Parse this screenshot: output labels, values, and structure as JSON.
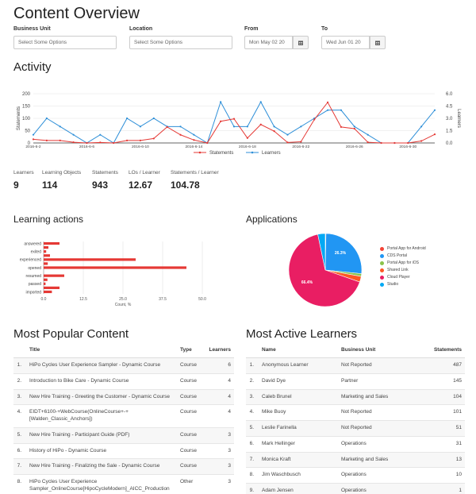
{
  "page": {
    "title": "Content Overview"
  },
  "filters": {
    "business_unit": {
      "label": "Business Unit",
      "placeholder": "Select Some Options"
    },
    "location": {
      "label": "Location",
      "placeholder": "Select Some Options"
    },
    "from": {
      "label": "From",
      "value": "Mon May 02 20"
    },
    "to": {
      "label": "To",
      "value": "Wed Jun 01 20"
    }
  },
  "activity": {
    "title": "Activity",
    "y_left_label": "Statements",
    "y_right_label": "Learners",
    "y_left_ticks": [
      "0",
      "50",
      "100",
      "150",
      "200"
    ],
    "y_right_ticks": [
      "0.0",
      "1.5",
      "3.0",
      "4.5",
      "6.0"
    ],
    "x_labels": [
      "2016-6-2",
      "2016-6-6",
      "2016-6-10",
      "2016-6-14",
      "2016-6-18",
      "2016-6-22",
      "2016-6-26",
      "2016-6-30"
    ],
    "legend": {
      "statements": "Statements",
      "learners": "Learners"
    },
    "colors": {
      "statements": "#e53935",
      "learners": "#2e8fd8"
    }
  },
  "stats": [
    {
      "label": "Learners",
      "value": "9"
    },
    {
      "label": "Learning Objects",
      "value": "114"
    },
    {
      "label": "Statements",
      "value": "943"
    },
    {
      "label": "LOs / Learner",
      "value": "12.67"
    },
    {
      "label": "Statements / Learner",
      "value": "104.78"
    }
  ],
  "learning_actions": {
    "title": "Learning actions",
    "xlabel": "Count, %",
    "x_ticks": [
      "0.0",
      "12.5",
      "25.0",
      "37.5",
      "50.0"
    ],
    "y_labels": [
      "answered",
      "exited",
      "experienced",
      "opened",
      "resumed",
      "passed",
      "imported"
    ]
  },
  "applications": {
    "title": "Applications",
    "legend": [
      {
        "label": "Portal App for Android",
        "color": "#f44336"
      },
      {
        "label": "CDS Portal",
        "color": "#2196f3"
      },
      {
        "label": "Portal App for iOS",
        "color": "#8bc34a"
      },
      {
        "label": "Shared Link",
        "color": "#ff5722"
      },
      {
        "label": "Cloud Player",
        "color": "#e91e63"
      },
      {
        "label": "Studio",
        "color": "#03a9f4"
      }
    ],
    "slice_labels": {
      "cds": "26.3%",
      "cloud": "66.4%"
    }
  },
  "popular_content": {
    "title": "Most Popular Content",
    "columns": [
      "Title",
      "Type",
      "Learners"
    ],
    "rows": [
      {
        "idx": "1.",
        "title": "HiPo Cycles User Experience Sampler - Dynamic Course",
        "type": "Course",
        "learners": "6"
      },
      {
        "idx": "2.",
        "title": "Introduction to Bike Care - Dynamic Course",
        "type": "Course",
        "learners": "4"
      },
      {
        "idx": "3.",
        "title": "New Hire Training - Greeting the Customer - Dynamic Course",
        "type": "Course",
        "learners": "4"
      },
      {
        "idx": "4.",
        "title": "EIDT+6100-+WebCourse(OnlineCourse+-+[Walden_Classic_Anchors])",
        "type": "Course",
        "learners": "4"
      },
      {
        "idx": "5.",
        "title": "New Hire Training - Participant Guide (PDF)",
        "type": "Course",
        "learners": "3"
      },
      {
        "idx": "6.",
        "title": "History of HiPo - Dynamic Course",
        "type": "Course",
        "learners": "3"
      },
      {
        "idx": "7.",
        "title": "New Hire Training - Finalizing the Sale - Dynamic Course",
        "type": "Course",
        "learners": "3"
      },
      {
        "idx": "8.",
        "title": "HiPo Cycles User Experience Sampler_OnlineCourse[HipoCycleModern]_AICC_Production",
        "type": "Other",
        "learners": "3"
      }
    ]
  },
  "active_learners": {
    "title": "Most Active Learners",
    "columns": [
      "Name",
      "Business Unit",
      "Statements"
    ],
    "rows": [
      {
        "idx": "1.",
        "name": "Anonymous Learner",
        "unit": "Not Reported",
        "statements": "487"
      },
      {
        "idx": "2.",
        "name": "David Dye",
        "unit": "Partner",
        "statements": "145"
      },
      {
        "idx": "3.",
        "name": "Caleb Brunel",
        "unit": "Marketing and Sales",
        "statements": "104"
      },
      {
        "idx": "4.",
        "name": "Mike Buoy",
        "unit": "Not Reported",
        "statements": "101"
      },
      {
        "idx": "5.",
        "name": "Leslie Farinella",
        "unit": "Not Reported",
        "statements": "51"
      },
      {
        "idx": "6.",
        "name": "Mark Hellinger",
        "unit": "Operations",
        "statements": "31"
      },
      {
        "idx": "7.",
        "name": "Monica Kraft",
        "unit": "Marketing and Sales",
        "statements": "13"
      },
      {
        "idx": "8.",
        "name": "Jim Waschbusch",
        "unit": "Operations",
        "statements": "10"
      },
      {
        "idx": "9.",
        "name": "Adam Jensen",
        "unit": "Operations",
        "statements": "1"
      }
    ]
  },
  "chart_data": [
    {
      "type": "line",
      "title": "Activity",
      "x": [
        "2016-6-2",
        "2016-6-3",
        "2016-6-4",
        "2016-6-5",
        "2016-6-6",
        "2016-6-7",
        "2016-6-8",
        "2016-6-9",
        "2016-6-10",
        "2016-6-11",
        "2016-6-12",
        "2016-6-13",
        "2016-6-14",
        "2016-6-15",
        "2016-6-16",
        "2016-6-17",
        "2016-6-18",
        "2016-6-19",
        "2016-6-20",
        "2016-6-21",
        "2016-6-22",
        "2016-6-23",
        "2016-6-24",
        "2016-6-25",
        "2016-6-26",
        "2016-6-27",
        "2016-6-28",
        "2016-6-29",
        "2016-6-30",
        "2016-7-1",
        "2016-7-2"
      ],
      "series": [
        {
          "name": "Statements",
          "axis": "left",
          "values": [
            15,
            10,
            10,
            3,
            0,
            2,
            0,
            10,
            10,
            18,
            65,
            33,
            12,
            0,
            88,
            98,
            20,
            75,
            48,
            2,
            5,
            95,
            165,
            65,
            58,
            3,
            0,
            0,
            0,
            8,
            35
          ]
        },
        {
          "name": "Learners",
          "axis": "right",
          "values": [
            1,
            3,
            2,
            1,
            0,
            1,
            0,
            3,
            2,
            3,
            2,
            2,
            1,
            0,
            5,
            2,
            2,
            5,
            2,
            1,
            2,
            3,
            4,
            4,
            2,
            1,
            0,
            0,
            0,
            2,
            4
          ]
        }
      ],
      "ylabel": "Statements",
      "y2label": "Learners",
      "ylim": [
        0,
        200
      ],
      "y2lim": [
        0,
        6
      ],
      "legend_position": "bottom",
      "grid": true
    },
    {
      "type": "bar",
      "orientation": "horizontal",
      "title": "Learning actions",
      "categories": [
        "answered",
        "",
        "exited",
        "",
        "experienced",
        "",
        "opened",
        "",
        "resumed",
        "",
        "passed",
        "",
        "imported"
      ],
      "values": [
        5,
        1.5,
        0.8,
        2,
        29,
        1.3,
        45,
        0,
        6.5,
        1.2,
        0.6,
        5,
        2.6
      ],
      "xlabel": "Count, %",
      "xlim": [
        0,
        50
      ],
      "grid": true
    },
    {
      "type": "pie",
      "title": "Applications",
      "categories": [
        "Portal App for Android",
        "CDS Portal",
        "Portal App for iOS",
        "Shared Link",
        "Cloud Player",
        "Studio"
      ],
      "values": [
        0.3,
        26.3,
        1.2,
        2.5,
        66.4,
        3.3
      ],
      "legend_position": "right"
    }
  ]
}
